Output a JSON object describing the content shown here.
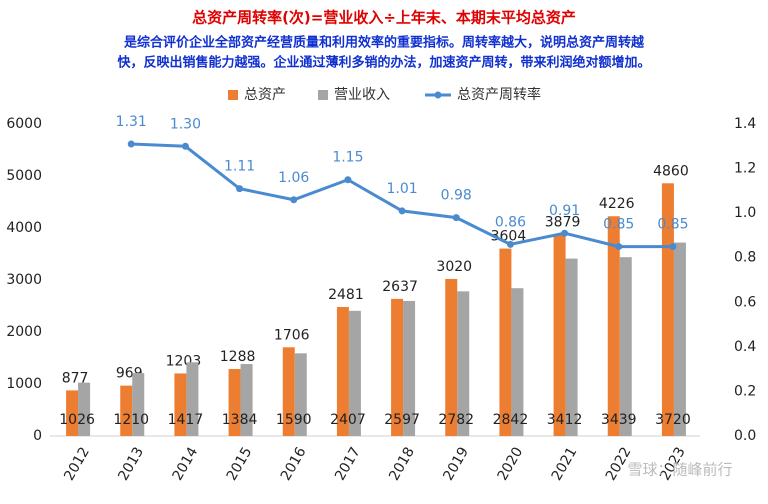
{
  "chart_data": {
    "type": "bar-line",
    "title": "总资产周转率(次)=营业收入÷上年末、本期末平均总资产",
    "subtitle_lines": [
      "是综合评价企业全部资产经营质量和利用效率的重要指标。周转率越大，说明总资产周转越",
      "快，反映出销售能力越强。企业通过薄利多销的办法，加速资产周转，带来利润绝对额增加。"
    ],
    "categories": [
      "2012",
      "2013",
      "2014",
      "2015",
      "2016",
      "2017",
      "2018",
      "2019",
      "2020",
      "2021",
      "2022",
      "2023"
    ],
    "series": [
      {
        "name": "总资产",
        "type": "bar",
        "color": "#ed7d31",
        "values": [
          877,
          969,
          1203,
          1288,
          1706,
          2481,
          2637,
          3020,
          3604,
          3879,
          4226,
          4860
        ]
      },
      {
        "name": "营业收入",
        "type": "bar",
        "color": "#a5a5a5",
        "values": [
          1026,
          1210,
          1417,
          1384,
          1590,
          2407,
          2597,
          2782,
          2842,
          3412,
          3439,
          3720
        ]
      },
      {
        "name": "总资产周转率",
        "type": "line",
        "axis": "y2",
        "color": "#4a8bd0",
        "values": [
          null,
          1.31,
          1.3,
          1.11,
          1.06,
          1.15,
          1.01,
          0.98,
          0.86,
          0.91,
          0.85,
          0.85
        ],
        "value_labels": [
          null,
          "1.31",
          "1.30",
          "1.11",
          "1.06",
          "1.15",
          "1.01",
          "0.98",
          "0.86",
          "0.91",
          "0.85",
          "0.85"
        ]
      }
    ],
    "ylim": [
      0,
      6000
    ],
    "yticks": [
      0,
      1000,
      2000,
      3000,
      4000,
      5000,
      6000
    ],
    "y2lim": [
      0,
      1.4
    ],
    "y2ticks": [
      {
        "value": 0,
        "label": "0.0"
      },
      0.2,
      0.4,
      0.6,
      0.8,
      {
        "value": 1,
        "label": "1.0"
      },
      1.2,
      1.4
    ],
    "grid": false,
    "watermark": "雪球：随峰前行"
  }
}
